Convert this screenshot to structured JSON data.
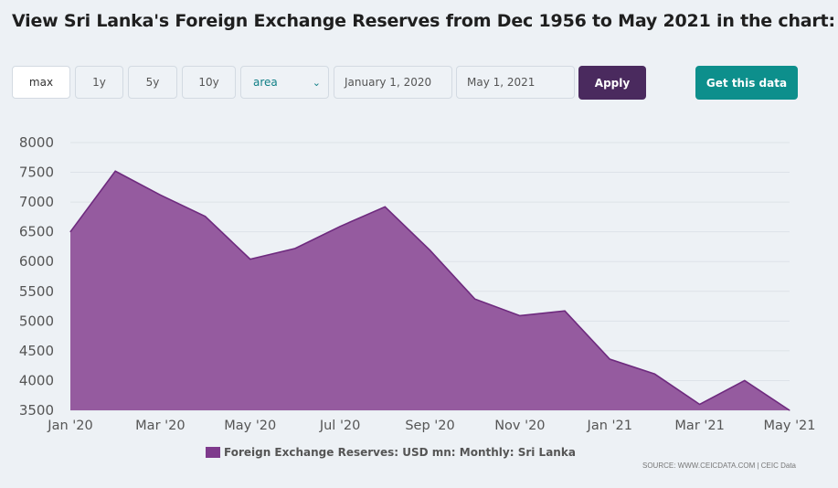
{
  "title": "View Sri Lanka's Foreign Exchange Reserves from Dec 1956 to May 2021 in the chart:",
  "controls": {
    "ranges": [
      "max",
      "1y",
      "5y",
      "10y"
    ],
    "chart_type": "area",
    "start_date": "January 1, 2020",
    "end_date": "May 1, 2021",
    "apply_label": "Apply",
    "get_data_label": "Get this data"
  },
  "source": "SOURCE: WWW.CEICDATA.COM | CEIC Data",
  "colors": {
    "area_fill": "#955b9f",
    "area_stroke": "#6e2a7e",
    "apply_bg": "#4a2a5e",
    "get_data_bg": "#0d8f8c"
  },
  "chart_data": {
    "type": "area",
    "x": [
      "Jan '20",
      "Feb '20",
      "Mar '20",
      "Apr '20",
      "May '20",
      "Jun '20",
      "Jul '20",
      "Aug '20",
      "Sep '20",
      "Oct '20",
      "Nov '20",
      "Dec '20",
      "Jan '21",
      "Feb '21",
      "Mar '21",
      "Apr '21",
      "May '21"
    ],
    "x_tick_labels": [
      "Jan '20",
      "Mar '20",
      "May '20",
      "Jul '20",
      "Sep '20",
      "Nov '20",
      "Jan '21",
      "Mar '21",
      "May '21"
    ],
    "series": [
      {
        "name": "Foreign Exchange Reserves: USD mn: Monthly: Sri Lanka",
        "values": [
          6500,
          7520,
          7120,
          6760,
          6040,
          6220,
          6590,
          6920,
          6190,
          5370,
          5090,
          5170,
          4360,
          4110,
          3600,
          4000,
          3500
        ]
      }
    ],
    "ylim": [
      3500,
      8000
    ],
    "y_ticks": [
      3500,
      4000,
      4500,
      5000,
      5500,
      6000,
      6500,
      7000,
      7500,
      8000
    ],
    "grid": true,
    "legend": "bottom"
  }
}
